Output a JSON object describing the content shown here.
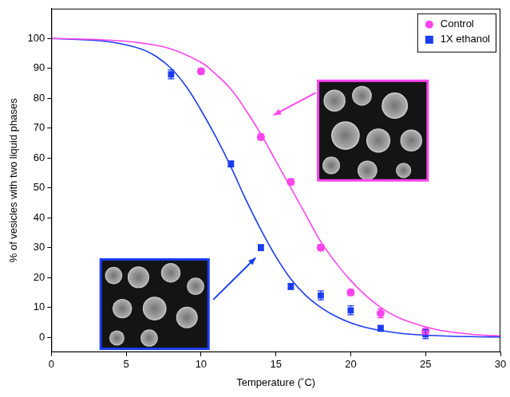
{
  "chart_data": {
    "type": "scatter",
    "x_label": "Temperature (˚C)",
    "y_label": "% of vesicles with two liquid phases",
    "xlim": [
      0,
      30
    ],
    "xticks": [
      0,
      5,
      10,
      15,
      20,
      25,
      30
    ],
    "ylim": [
      -5,
      110
    ],
    "yticks": [
      0,
      10,
      20,
      30,
      40,
      50,
      60,
      70,
      80,
      90,
      100
    ],
    "grid": false,
    "legend": "upper right",
    "series": [
      {
        "name": "Control",
        "color": "#ff44ee",
        "marker": "circle",
        "x": [
          10,
          14,
          16,
          18,
          20,
          22,
          25
        ],
        "values": [
          89,
          67,
          52,
          30,
          15,
          8,
          2
        ],
        "errors": [
          1,
          1,
          1,
          1,
          1,
          1.5,
          1
        ],
        "curve": {
          "x": [
            0,
            2,
            4,
            6,
            8,
            10,
            11,
            12,
            13,
            14,
            15,
            16,
            17,
            18,
            19,
            20,
            21,
            22,
            23,
            24,
            25,
            26,
            28,
            30
          ],
          "values": [
            100,
            99.8,
            99.4,
            98.5,
            96.5,
            92,
            88,
            83,
            76,
            68,
            59,
            50,
            41,
            32,
            25,
            19,
            14,
            10,
            7,
            5,
            3.5,
            2.3,
            1,
            0.4
          ]
        }
      },
      {
        "name": "1X ethanol",
        "color": "#1a3cf0",
        "marker": "square",
        "x": [
          8,
          12,
          14,
          16,
          18,
          20,
          22,
          25
        ],
        "values": [
          88,
          58,
          30,
          17,
          14,
          9,
          3,
          1
        ],
        "errors": [
          1.5,
          1,
          1,
          1,
          1.5,
          1.5,
          1,
          1.5
        ],
        "curve": {
          "x": [
            0,
            2,
            4,
            6,
            7,
            8,
            9,
            10,
            11,
            12,
            13,
            14,
            15,
            16,
            17,
            18,
            19,
            20,
            21,
            22,
            24,
            26,
            28,
            30
          ],
          "values": [
            100,
            99.6,
            98.8,
            96.5,
            94,
            90,
            84,
            76,
            67,
            57,
            46,
            36,
            27,
            19.5,
            14,
            10,
            7,
            4.8,
            3.3,
            2.3,
            1,
            0.5,
            0.2,
            0.1
          ]
        }
      }
    ]
  }
}
